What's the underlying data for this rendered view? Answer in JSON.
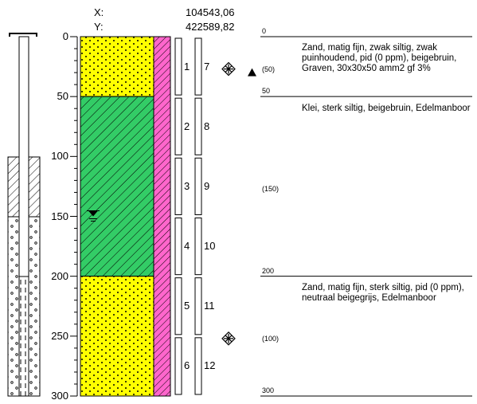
{
  "coordinates": {
    "x_label": "X:",
    "x_value": "104543,06",
    "y_label": "Y:",
    "y_value": "422589,82"
  },
  "depth_axis": {
    "ticks": [
      "0",
      "50",
      "100",
      "150",
      "200",
      "250",
      "300"
    ],
    "min": 0,
    "max": 300
  },
  "soil_layers": [
    {
      "top": 0,
      "bottom": 50,
      "type": "sand",
      "color": "#ffff00"
    },
    {
      "top": 50,
      "bottom": 200,
      "type": "clay",
      "color": "#33cc66"
    },
    {
      "top": 200,
      "bottom": 300,
      "type": "sand",
      "color": "#ffff00"
    }
  ],
  "admixture_column_color": "#ff66cc",
  "groundwater_depth": 148,
  "samples_a": [
    {
      "id": "1",
      "top": 0,
      "bottom": 50
    },
    {
      "id": "2",
      "top": 50,
      "bottom": 100
    },
    {
      "id": "3",
      "top": 100,
      "bottom": 150
    },
    {
      "id": "4",
      "top": 150,
      "bottom": 200
    },
    {
      "id": "5",
      "top": 200,
      "bottom": 250
    },
    {
      "id": "6",
      "top": 250,
      "bottom": 300
    }
  ],
  "samples_b": [
    {
      "id": "7",
      "top": 0,
      "bottom": 50
    },
    {
      "id": "8",
      "top": 50,
      "bottom": 100
    },
    {
      "id": "9",
      "top": 100,
      "bottom": 150
    },
    {
      "id": "10",
      "top": 150,
      "bottom": 200
    },
    {
      "id": "11",
      "top": 200,
      "bottom": 250
    },
    {
      "id": "12",
      "top": 250,
      "bottom": 300
    }
  ],
  "frost_markers": [
    25,
    250
  ],
  "triangle_marker_depth": 25,
  "descriptions": {
    "boundaries": [
      {
        "depth": 0,
        "label": "0"
      },
      {
        "depth": 50,
        "label": "50"
      },
      {
        "depth": 200,
        "label": "200"
      },
      {
        "depth": 300,
        "label": "300"
      }
    ],
    "layer_notes": [
      {
        "depth": 25,
        "label": "(50)"
      },
      {
        "depth": 125,
        "label": "(150)"
      },
      {
        "depth": 250,
        "label": "(100)"
      }
    ],
    "texts": [
      "Zand, matig fijn, zwak siltig, zwak puinhoudend, pid (0 ppm), beigebruin, Graven, 30x30x50 amm2 gf 3%",
      "Klei, sterk siltig, beigebruin, Edelmanboor",
      "Zand, matig fijn, sterk siltig, pid (0 ppm), neutraal beigegrijs, Edelmanboor"
    ]
  }
}
